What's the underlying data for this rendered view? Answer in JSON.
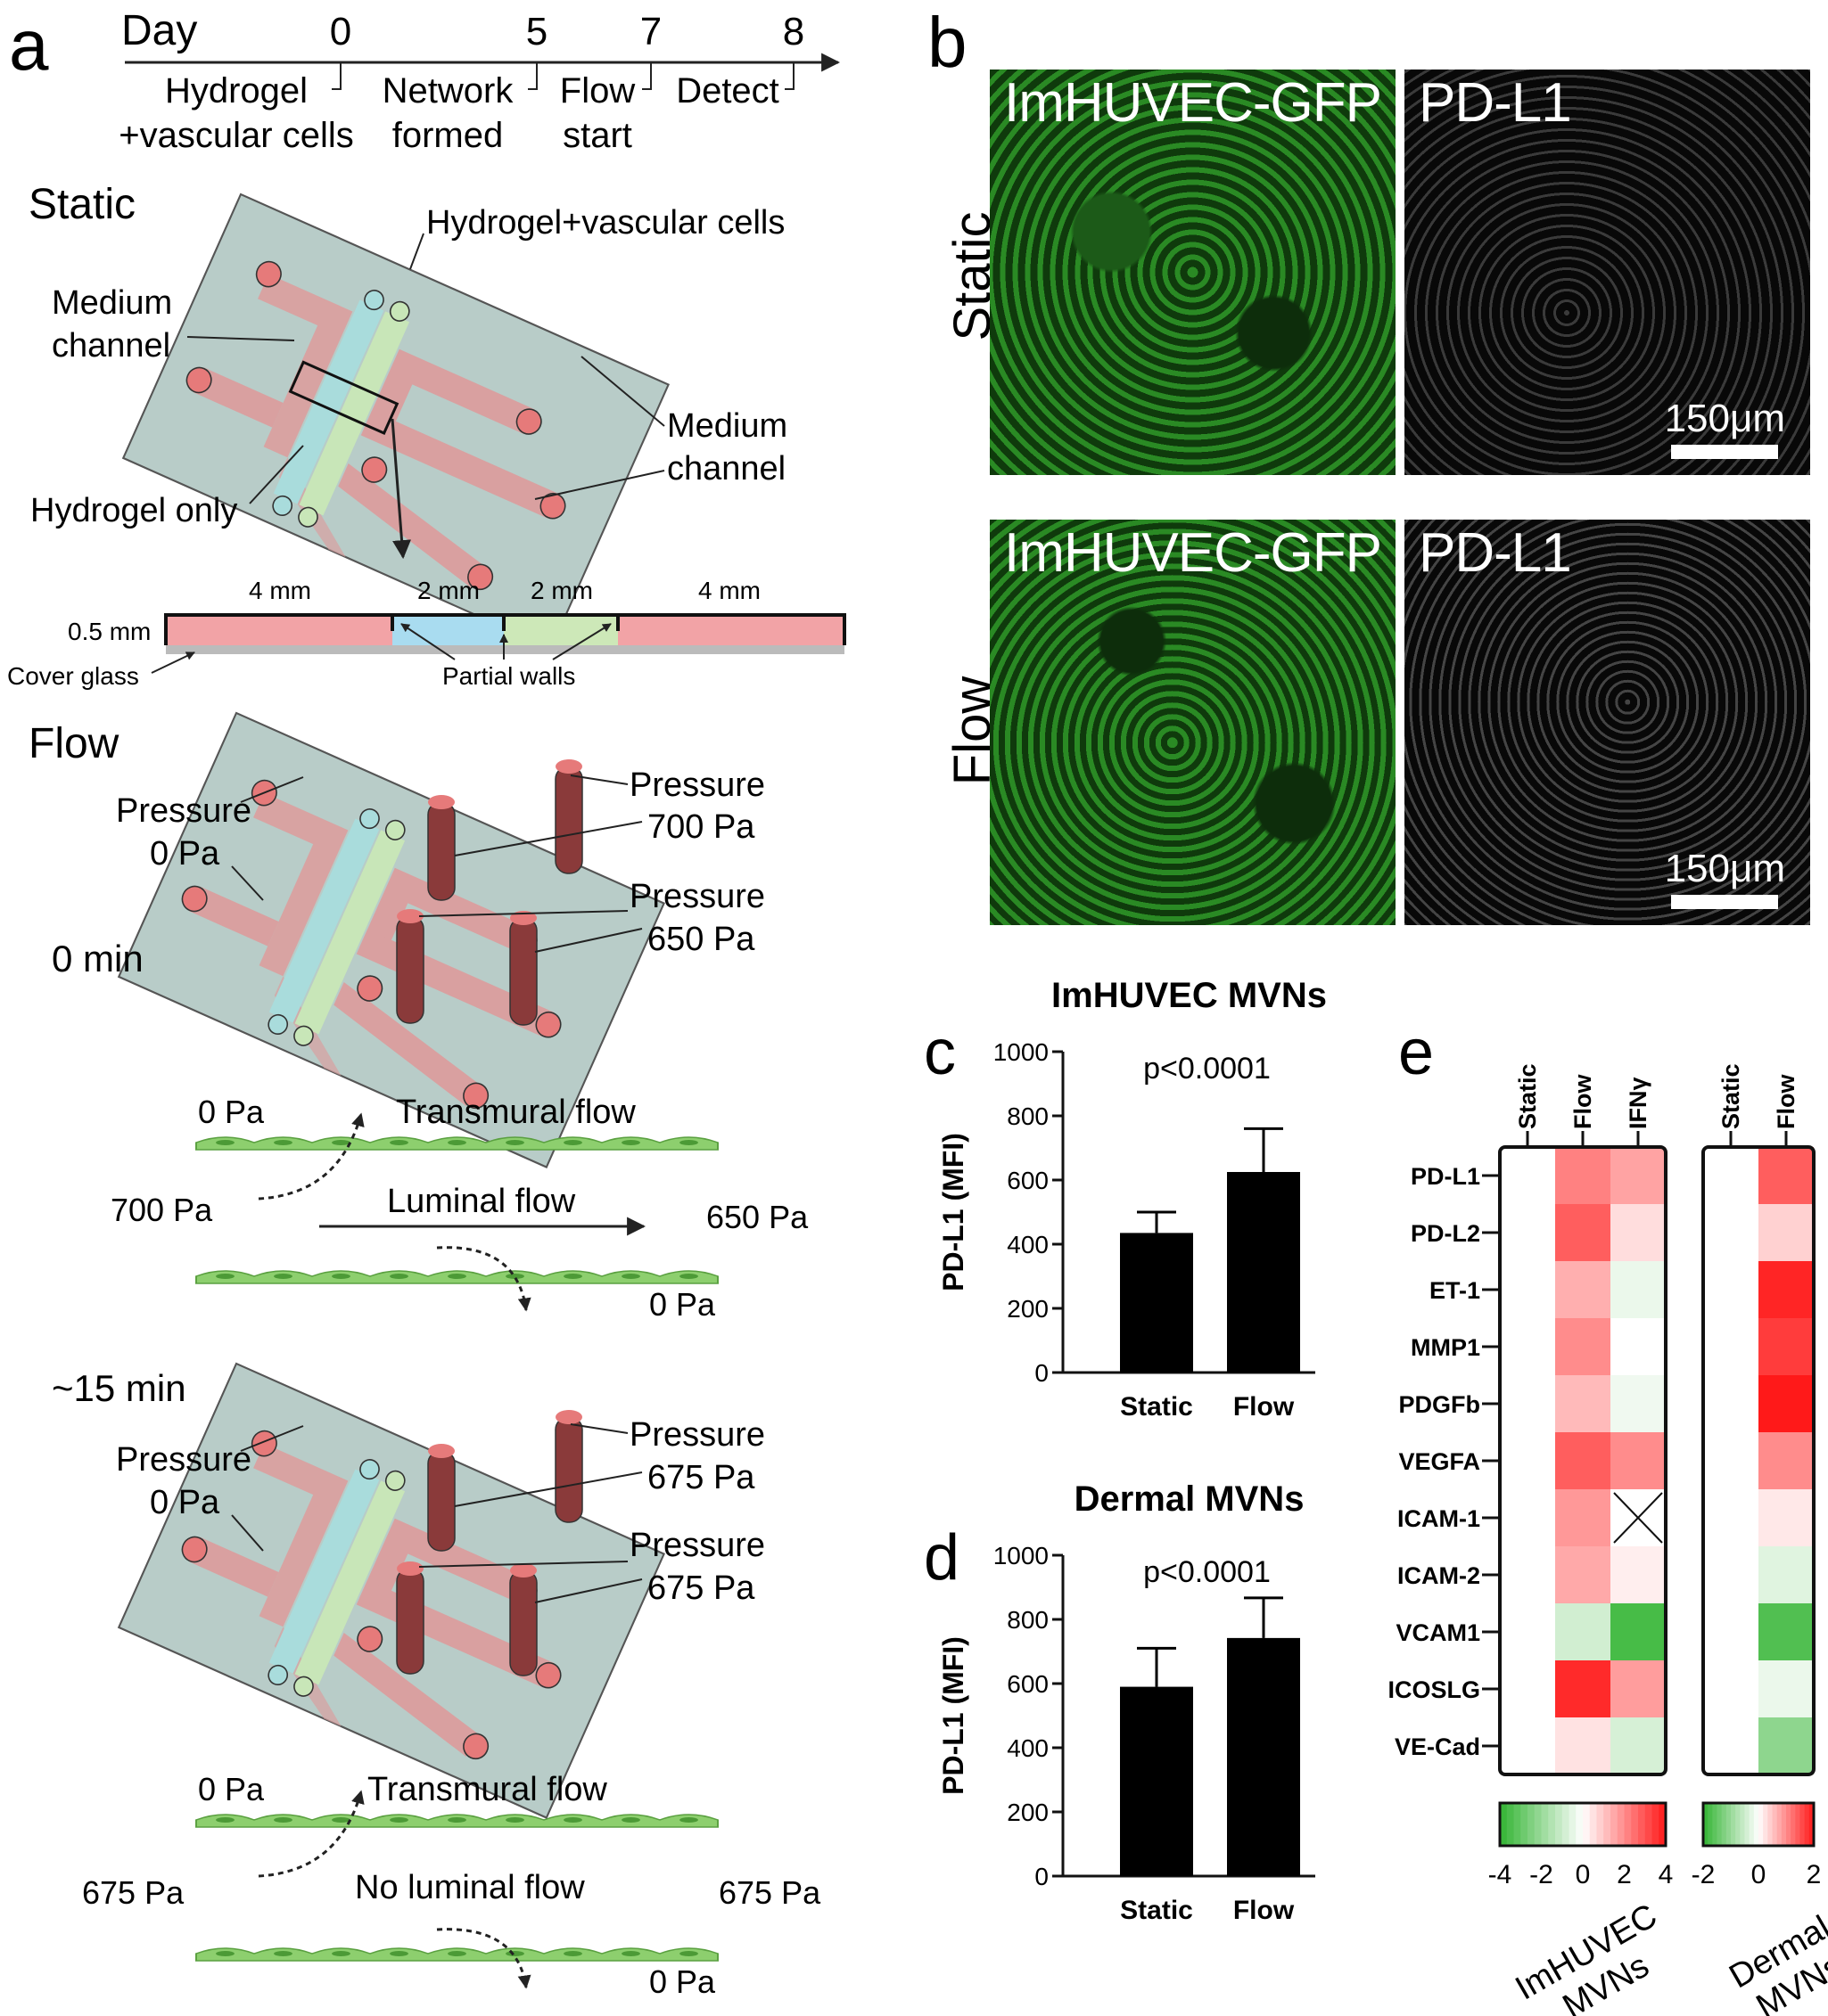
{
  "panel_letters": {
    "a": "a",
    "b": "b",
    "c": "c",
    "d": "d",
    "e": "e"
  },
  "timeline": {
    "day_label": "Day",
    "days": [
      "0",
      "5",
      "7",
      "8"
    ],
    "steps": [
      {
        "line1": "Hydrogel",
        "line2": "+vascular cells"
      },
      {
        "line1": "Network",
        "line2": "formed"
      },
      {
        "line1": "Flow",
        "line2": "start"
      },
      {
        "line1": "Detect",
        "line2": ""
      }
    ]
  },
  "static_diagram": {
    "title": "Static",
    "hydrogel_vascular": "Hydrogel+vascular cells",
    "medium_channel_left_1": "Medium",
    "medium_channel_left_2": "channel",
    "medium_channel_right_1": "Medium",
    "medium_channel_right_2": "channel",
    "hydrogel_only": "Hydrogel only"
  },
  "cross_section": {
    "widths": [
      "4 mm",
      "2 mm",
      "2 mm",
      "4 mm"
    ],
    "height": "0.5 mm",
    "cover_glass": "Cover glass",
    "partial_walls": "Partial walls"
  },
  "flow_diagram": {
    "title": "Flow",
    "time": "0 min",
    "pressure_left_1": "Pressure",
    "pressure_left_2": "0 Pa",
    "pressure_top_1": "Pressure",
    "pressure_top_2": "700 Pa",
    "pressure_bottom_1": "Pressure",
    "pressure_bottom_2": "650 Pa"
  },
  "flow_scheme_1": {
    "top_pa": "0 Pa",
    "transmural": "Transmural flow",
    "left_pa": "700 Pa",
    "luminal": "Luminal flow",
    "right_pa": "650 Pa",
    "bottom_pa": "0 Pa"
  },
  "flow_diagram_2": {
    "time": "~15 min",
    "pressure_left_1": "Pressure",
    "pressure_left_2": "0 Pa",
    "pressure_top_1": "Pressure",
    "pressure_top_2": "675 Pa",
    "pressure_bottom_1": "Pressure",
    "pressure_bottom_2": "675 Pa"
  },
  "flow_scheme_2": {
    "top_pa": "0 Pa",
    "transmural": "Transmural flow",
    "left_pa": "675 Pa",
    "luminal": "No luminal flow",
    "right_pa": "675 Pa",
    "bottom_pa": "0 Pa"
  },
  "micrographs": {
    "row_labels": [
      "Static",
      "Flow"
    ],
    "gfp_label": "ImHUVEC-GFP",
    "pdl1_label": "PD-L1",
    "scale_bar": "150μm"
  },
  "chart_data": [
    {
      "type": "bar",
      "title": "ImHUVEC MVNs",
      "annotation": "p<0.0001",
      "categories": [
        "Static",
        "Flow"
      ],
      "values": [
        435,
        625
      ],
      "errors": [
        65,
        135
      ],
      "ylabel": "PD-L1 (MFI)",
      "ylim": [
        0,
        1000
      ],
      "yticks": [
        0,
        200,
        400,
        600,
        800,
        1000
      ]
    },
    {
      "type": "bar",
      "title": "Dermal MVNs",
      "annotation": "p<0.0001",
      "categories": [
        "Static",
        "Flow"
      ],
      "values": [
        590,
        742
      ],
      "errors": [
        120,
        125
      ],
      "ylabel": "PD-L1 (MFI)",
      "ylim": [
        0,
        1000
      ],
      "yticks": [
        0,
        200,
        400,
        600,
        800,
        1000
      ]
    },
    {
      "type": "heatmap",
      "rows": [
        "PD-L1",
        "PD-L2",
        "ET-1",
        "MMP1",
        "PDGFb",
        "VEGFA",
        "ICAM-1",
        "ICAM-2",
        "VCAM1",
        "ICOSLG",
        "VE-Cad"
      ],
      "groups": [
        {
          "name": "ImHUVEC MVNs",
          "columns": [
            "Static",
            "Flow",
            "IFNγ"
          ],
          "values": [
            [
              0,
              2.2,
              1.6
            ],
            [
              0,
              2.8,
              0.6
            ],
            [
              0,
              1.4,
              -0.4
            ],
            [
              0,
              2.0,
              0
            ],
            [
              0,
              1.2,
              -0.3
            ],
            [
              0,
              2.8,
              2.0
            ],
            [
              0,
              1.8,
              null
            ],
            [
              0,
              1.5,
              0.3
            ],
            [
              0,
              -0.9,
              -3.6
            ],
            [
              0,
              3.7,
              1.7
            ],
            [
              0,
              0.5,
              -0.8
            ]
          ],
          "scale": {
            "min": -4,
            "max": 4,
            "ticks": [
              "-4",
              "-2",
              "0",
              "2",
              "4"
            ]
          }
        },
        {
          "name": "Dermal MVNs",
          "columns": [
            "Static",
            "Flow"
          ],
          "values": [
            [
              0,
              1.4
            ],
            [
              0,
              0.4
            ],
            [
              0,
              1.9
            ],
            [
              0,
              1.7
            ],
            [
              0,
              2.0
            ],
            [
              0,
              1.0
            ],
            [
              0,
              0.2
            ],
            [
              0,
              -0.3
            ],
            [
              0,
              -1.7
            ],
            [
              0,
              -0.2
            ],
            [
              0,
              -1.1
            ]
          ],
          "scale": {
            "min": -2,
            "max": 2,
            "ticks": [
              "-2",
              "0",
              "2"
            ]
          }
        }
      ]
    }
  ]
}
